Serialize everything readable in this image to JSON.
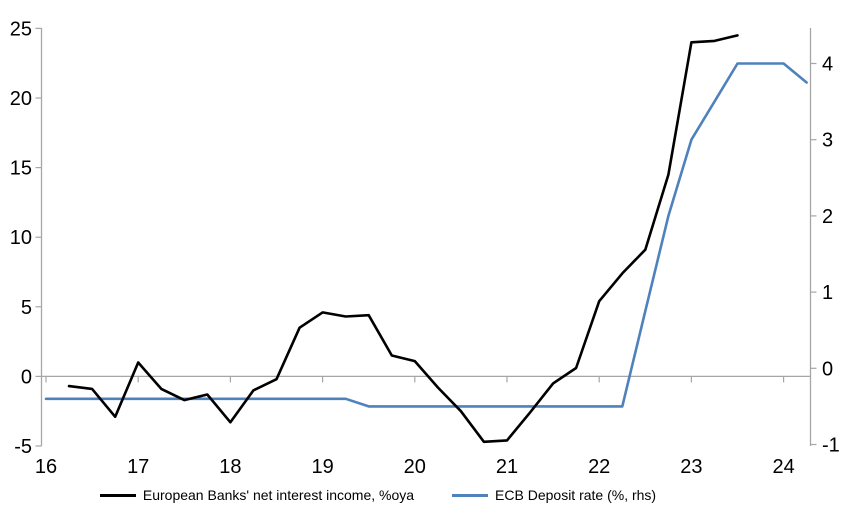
{
  "chart_data": {
    "type": "line",
    "title": "",
    "grid": "zero-line-only",
    "axis_color": "#A6A6A6",
    "background_color": "#FFFFFF",
    "legend_position": "bottom",
    "x_axis": {
      "ticks": [
        16,
        17,
        18,
        19,
        20,
        21,
        22,
        23,
        24
      ],
      "labels": [
        "16",
        "17",
        "18",
        "19",
        "20",
        "21",
        "22",
        "23",
        "24"
      ],
      "range": [
        16,
        24.3
      ]
    },
    "left_axis": {
      "ticks": [
        -5,
        0,
        5,
        10,
        15,
        20,
        25
      ],
      "labels": [
        "-5",
        "0",
        "5",
        "10",
        "15",
        "20",
        "25"
      ],
      "range": [
        -5,
        25
      ]
    },
    "right_axis": {
      "ticks": [
        -1,
        0,
        1,
        2,
        3,
        4
      ],
      "labels": [
        "-1",
        "0",
        "1",
        "2",
        "3",
        "4"
      ],
      "range": [
        -1,
        4.5
      ]
    },
    "series": [
      {
        "name": "European Banks' net interest income, %oya",
        "color": "#000000",
        "axis": "left",
        "x": [
          16.25,
          16.5,
          16.75,
          17.0,
          17.25,
          17.5,
          17.75,
          18.0,
          18.25,
          18.5,
          18.75,
          19.0,
          19.25,
          19.5,
          19.75,
          20.0,
          20.25,
          20.5,
          20.75,
          21.0,
          21.25,
          21.5,
          21.75,
          22.0,
          22.25,
          22.5,
          22.75,
          23.0,
          23.25,
          23.5
        ],
        "y": [
          -0.7,
          -0.9,
          -2.9,
          1.0,
          -0.9,
          -1.7,
          -1.3,
          -3.3,
          -1.0,
          -0.2,
          3.5,
          4.6,
          4.3,
          4.4,
          1.5,
          1.1,
          -0.8,
          -2.5,
          -4.7,
          -4.6,
          -2.6,
          -0.5,
          0.6,
          5.4,
          7.4,
          9.1,
          14.5,
          24.0,
          24.1,
          24.5
        ]
      },
      {
        "name": "ECB Deposit rate (%, rhs)",
        "color": "#4F81BD",
        "axis": "right",
        "x": [
          16.0,
          16.25,
          16.5,
          16.75,
          17.0,
          17.25,
          17.5,
          17.75,
          18.0,
          18.25,
          18.5,
          18.75,
          19.0,
          19.25,
          19.5,
          19.75,
          20.0,
          20.25,
          20.5,
          20.75,
          21.0,
          21.25,
          21.5,
          21.75,
          22.0,
          22.25,
          22.5,
          22.75,
          23.0,
          23.25,
          23.5,
          23.75,
          24.0,
          24.25
        ],
        "y": [
          -0.4,
          -0.4,
          -0.4,
          -0.4,
          -0.4,
          -0.4,
          -0.4,
          -0.4,
          -0.4,
          -0.4,
          -0.4,
          -0.4,
          -0.4,
          -0.4,
          -0.5,
          -0.5,
          -0.5,
          -0.5,
          -0.5,
          -0.5,
          -0.5,
          -0.5,
          -0.5,
          -0.5,
          -0.5,
          -0.5,
          0.75,
          2.0,
          3.0,
          3.5,
          4.0,
          4.0,
          4.0,
          3.75
        ]
      }
    ]
  }
}
